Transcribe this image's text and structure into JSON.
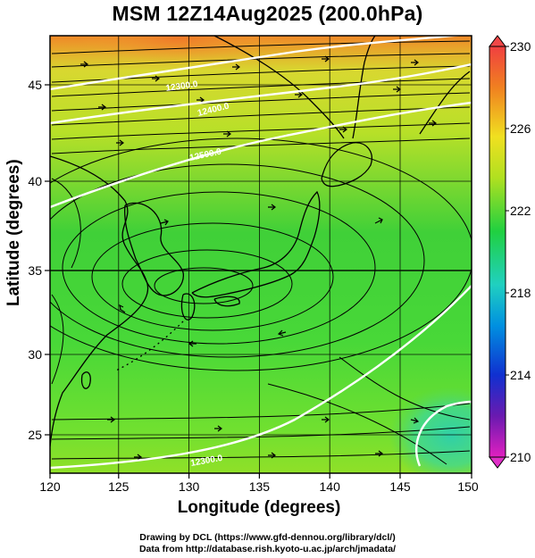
{
  "title": "MSM 12Z14Aug2025 (200.0hPa)",
  "axes": {
    "xlabel": "Longitude (degrees)",
    "ylabel": "Latitude  (degrees)",
    "x_ticks": [
      "120",
      "125",
      "130",
      "135",
      "140",
      "145",
      "150"
    ],
    "y_ticks": [
      "25",
      "30",
      "35",
      "40",
      "45"
    ]
  },
  "colorbar": {
    "ticks": [
      "230",
      "226",
      "222",
      "218",
      "214",
      "210"
    ],
    "min": 210,
    "max": 230,
    "colors": [
      "#e020c0",
      "#6a1ab0",
      "#1030d0",
      "#0090e0",
      "#20d0c0",
      "#20d040",
      "#b0e020",
      "#f0e020",
      "#f08020",
      "#f04040"
    ]
  },
  "contours": {
    "labels": [
      "12300.0",
      "12400.0",
      "12500.0",
      "12300.0"
    ]
  },
  "credits": {
    "line1": "Drawing by DCL (https://www.gfd-dennou.org/library/dcl/)",
    "line2": "Data from http://database.rish.kyoto-u.ac.jp/arch/jmadata/"
  },
  "chart_data": {
    "type": "heatmap",
    "title": "MSM 12Z14Aug2025 (200.0hPa)",
    "xlabel": "Longitude (degrees)",
    "ylabel": "Latitude  (degrees)",
    "xlim": [
      120,
      150
    ],
    "ylim": [
      22.5,
      47.6
    ],
    "color_range": [
      210,
      230
    ],
    "overlays": [
      "streamlines (wind)",
      "geopotential height contours",
      "coastlines",
      "grid"
    ],
    "contour_levels": [
      12300.0,
      12400.0,
      12500.0
    ]
  }
}
